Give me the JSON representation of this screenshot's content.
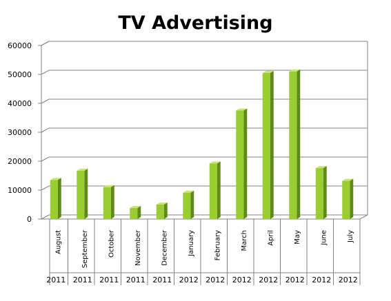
{
  "chart_data": {
    "type": "bar",
    "title": "TV Advertising",
    "xlabel": "",
    "ylabel": "",
    "ylim": [
      0,
      60000
    ],
    "yticks": [
      0,
      10000,
      20000,
      30000,
      40000,
      50000,
      60000
    ],
    "categories": [
      "August",
      "September",
      "October",
      "November",
      "December",
      "January",
      "February",
      "March",
      "April",
      "May",
      "June",
      "July"
    ],
    "years": [
      "2011",
      "2011",
      "2011",
      "2011",
      "2011",
      "2012",
      "2012",
      "2012",
      "2012",
      "2012",
      "2012",
      "2012"
    ],
    "values": [
      13500,
      16700,
      11000,
      3800,
      5000,
      9100,
      19200,
      37500,
      50500,
      51000,
      17600,
      13200
    ],
    "grid": true,
    "legend": "none"
  },
  "colors": {
    "bar_front": "#9acd32",
    "bar_side": "#5f8a1a",
    "bar_top": "#c5e86b",
    "grid": "#808080",
    "axis": "#808080"
  }
}
